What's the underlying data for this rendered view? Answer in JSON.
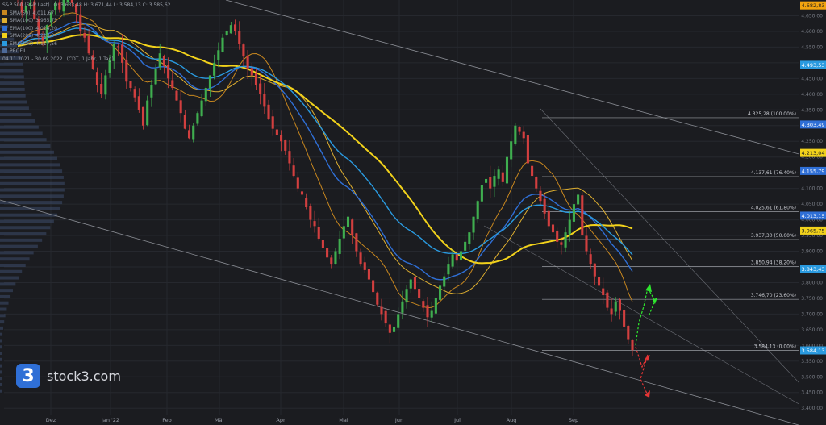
{
  "header": {
    "instrument": "S&P 500 (S&P Last)",
    "ohlc": "O: 3.633,48  H: 3.671,44  L: 3.584,13  C: 3.585,62",
    "period": "04.11.2021 - 30.09.2022",
    "interval": "(CDT, 1 Jahr, 1 Tag)"
  },
  "legend": [
    {
      "name": "SMA(50)",
      "value": "4.011,67",
      "color": "#c8871f"
    },
    {
      "name": "SMA(100)",
      "value": "3.965,75",
      "color": "#e0b030"
    },
    {
      "name": "EMA(100)",
      "value": "4.014,20",
      "color": "#2f6fd6"
    },
    {
      "name": "SMA(200)",
      "value": "4.213,04",
      "color": "#f2d21b"
    },
    {
      "name": "EMA(200)",
      "value": "4.117,56",
      "color": "#2a9adf"
    },
    {
      "name": "PROFIL",
      "value": "",
      "color": "#4d6a9a"
    }
  ],
  "brand": {
    "logo": "3",
    "name": "stock3.com"
  },
  "chart_data": {
    "type": "candlestick",
    "x_tick_labels": [
      "Dez",
      "Jan '22",
      "Feb",
      "Mär",
      "Apr",
      "Mai",
      "Jun",
      "Jul",
      "Aug",
      "Sep"
    ],
    "y_ticks": [
      3400,
      3450,
      3500,
      3550,
      3600,
      3650,
      3700,
      3750,
      3800,
      3850,
      3900,
      3950,
      4000,
      4050,
      4100,
      4150,
      4200,
      4250,
      4300,
      4350,
      4400,
      4450,
      4500,
      4550,
      4600,
      4650
    ],
    "y_tick_labels": [
      "3.400,00",
      "3.450,00",
      "3.500,00",
      "3.550,00",
      "3.600,00",
      "3.650,00",
      "3.700,00",
      "3.750,00",
      "3.800,00",
      "3.850,00",
      "3.900,00",
      "3.950,00",
      "4.000,00",
      "4.050,00",
      "4.100,00",
      "4.150,00",
      "4.200,00",
      "4.250,00",
      "4.300,00",
      "4.350,00",
      "4.400,00",
      "4.450,00",
      "4.500,00",
      "4.550,00",
      "4.600,00",
      "4.650,00"
    ],
    "ylim": [
      3380,
      4700
    ],
    "fib_levels": [
      {
        "price": 4325.28,
        "label": "4.325,28 (100.00%)"
      },
      {
        "price": 4137.61,
        "label": "4.137,61 (76.40%)"
      },
      {
        "price": 4025.61,
        "label": "4.025,61 (61.80%)"
      },
      {
        "price": 3937.3,
        "label": "3.937,30 (50.00%)"
      },
      {
        "price": 3850.94,
        "label": "3.850,94 (38.20%)"
      },
      {
        "price": 3746.7,
        "label": "3.746,70 (23.60%)"
      },
      {
        "price": 3584.13,
        "label": "3.584,13 (0.00%)"
      }
    ],
    "price_tags": [
      {
        "price": 4682.83,
        "label": "4.682,83",
        "bg": "#f2a30f",
        "fg": "#1b1c20"
      },
      {
        "price": 4493.53,
        "label": "4.493,53",
        "bg": "#2a9adf",
        "fg": "#ffffff"
      },
      {
        "price": 4303.49,
        "label": "4.303,49",
        "bg": "#2f6fd6",
        "fg": "#ffffff"
      },
      {
        "price": 4213.04,
        "label": "4.213,04",
        "bg": "#f2d21b",
        "fg": "#1b1c20"
      },
      {
        "price": 4155.79,
        "label": "4.155,79",
        "bg": "#2f6fd6",
        "fg": "#ffffff"
      },
      {
        "price": 4013.15,
        "label": "4.013,15",
        "bg": "#2f6fd6",
        "fg": "#ffffff"
      },
      {
        "price": 3965.75,
        "label": "3.965,75",
        "bg": "#f2d21b",
        "fg": "#1b1c20"
      },
      {
        "price": 3843.43,
        "label": "3.843,43",
        "bg": "#2a9adf",
        "fg": "#ffffff"
      },
      {
        "price": 3584.13,
        "label": "3.584,13",
        "bg": "#2a9adf",
        "fg": "#ffffff"
      }
    ],
    "closes": [
      4700,
      4660,
      4680,
      4690,
      4640,
      4590,
      4570,
      4620,
      4660,
      4690,
      4670,
      4700,
      4710,
      4690,
      4660,
      4600,
      4580,
      4530,
      4480,
      4430,
      4400,
      4460,
      4510,
      4560,
      4550,
      4500,
      4440,
      4420,
      4390,
      4350,
      4300,
      4380,
      4430,
      4480,
      4530,
      4490,
      4450,
      4420,
      4380,
      4340,
      4290,
      4260,
      4300,
      4340,
      4380,
      4420,
      4460,
      4500,
      4540,
      4580,
      4600,
      4620,
      4600,
      4560,
      4520,
      4480,
      4460,
      4430,
      4400,
      4360,
      4320,
      4290,
      4270,
      4250,
      4220,
      4180,
      4140,
      4100,
      4080,
      4040,
      4000,
      3980,
      3940,
      3910,
      3880,
      3860,
      3900,
      3940,
      3980,
      4010,
      3950,
      3900,
      3860,
      3840,
      3810,
      3770,
      3730,
      3700,
      3670,
      3640,
      3660,
      3700,
      3740,
      3780,
      3810,
      3780,
      3750,
      3720,
      3690,
      3710,
      3750,
      3790,
      3820,
      3860,
      3890,
      3870,
      3900,
      3930,
      3960,
      4010,
      4060,
      4110,
      4130,
      4100,
      4140,
      4160,
      4120,
      4200,
      4250,
      4300,
      4280,
      4260,
      4180,
      4140,
      4100,
      4060,
      4020,
      3980,
      3960,
      3930,
      3920,
      3960,
      4000,
      4050,
      4080,
      3950,
      3900,
      3860,
      3820,
      3790,
      3760,
      3720,
      3700,
      3740,
      3710,
      3660,
      3620,
      3585
    ]
  }
}
